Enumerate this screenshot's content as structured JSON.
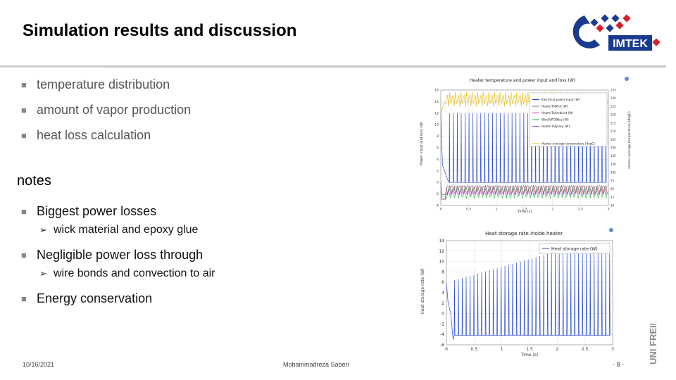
{
  "slide": {
    "title": "Simulation results and discussion",
    "bullets": [
      "temperature distribution",
      "amount of vapor production",
      "heat loss calculation"
    ],
    "notes_heading": "notes",
    "notes": [
      {
        "text": "Biggest power losses",
        "sub": "wick material and epoxy glue"
      },
      {
        "text": "Negligible power loss through",
        "sub": "wire bonds and convection to air"
      },
      {
        "text": "Energy conservation",
        "sub": ""
      }
    ]
  },
  "logo": {
    "text": "IMTEK",
    "colors": {
      "blue": "#1a3a8f",
      "red": "#d4202c"
    }
  },
  "university_mark": {
    "text": "UNI FREIBURG"
  },
  "footer": {
    "date": "10/16/2021",
    "author": "Mohammadreza Saberi",
    "page": "- 8 -"
  },
  "chart_data": [
    {
      "type": "line",
      "title": "Heater temperature and power input and loss (W)",
      "xlabel": "Time (s)",
      "ylabel": "Power input and loss (W)",
      "ylabel_right": "Heater average temperature (degC)",
      "xlim": [
        0,
        3
      ],
      "ylim": [
        -4,
        16
      ],
      "ylim_right": [
        29,
        235
      ],
      "x_ticks": [
        "0",
        "0.5",
        "1",
        "1.5",
        "2",
        "2.5",
        "3"
      ],
      "y_ticks": [
        "16",
        "14",
        "12",
        "10",
        "8",
        "6",
        "4",
        "2",
        "0",
        "-2",
        "-4"
      ],
      "y_ticks_right": [
        "235",
        "230",
        "225",
        "220",
        "215",
        "210",
        "205",
        "200",
        "195",
        "190",
        "185",
        "75",
        "60",
        "45",
        "29"
      ],
      "legend": [
        "Electrical power input (W)",
        "HeaterToWick (W)",
        "HeaterToAmbient (W)",
        "WireToPCBBus (W)",
        "HeaterToEpoxy (W)",
        "Heater average temperature (degC)"
      ],
      "series_colors": [
        "#2b4bd6",
        "#7a7a7a",
        "#c0306f",
        "#2fb84a",
        "#8a5cc0",
        "#e8c020"
      ],
      "grid": true,
      "legend_position": "top-right"
    },
    {
      "type": "line",
      "title": "Heat storage rate inside heater",
      "xlabel": "Time (s)",
      "ylabel": "Heat storage rate (W)",
      "xlim": [
        0,
        3
      ],
      "ylim": [
        -6,
        14
      ],
      "x_ticks": [
        "0",
        "0.5",
        "1",
        "1.5",
        "2",
        "2.5",
        "3"
      ],
      "y_ticks": [
        "14",
        "12",
        "10",
        "8",
        "6",
        "4",
        "2",
        "0",
        "-2",
        "-4",
        "-6"
      ],
      "legend": [
        "Heat storage rate (W)"
      ],
      "series_colors": [
        "#2b4bd6"
      ],
      "grid": true,
      "legend_position": "top-right"
    }
  ]
}
